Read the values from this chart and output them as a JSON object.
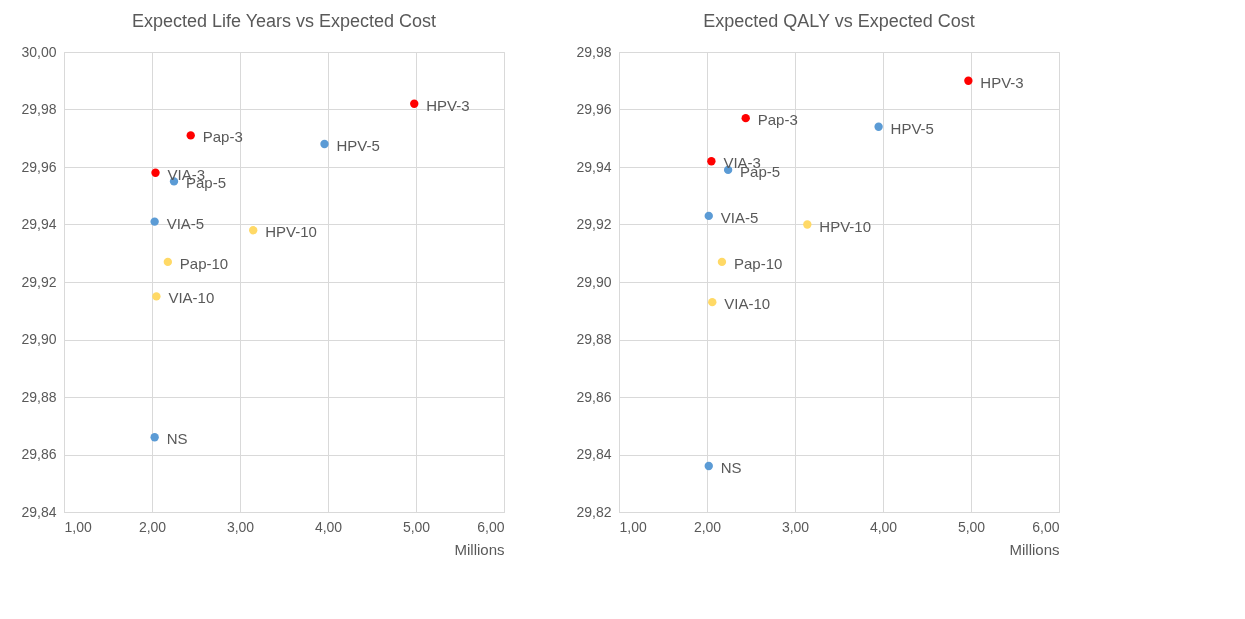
{
  "chart_data": [
    {
      "type": "scatter",
      "title": "Expected Life Years vs Expected Cost",
      "xlabel": "Millions",
      "xlim": [
        1,
        6
      ],
      "xticks": [
        {
          "value": 1,
          "label": "1,00"
        },
        {
          "value": 2,
          "label": "2,00"
        },
        {
          "value": 3,
          "label": "3,00"
        },
        {
          "value": 4,
          "label": "4,00"
        },
        {
          "value": 5,
          "label": "5,00"
        },
        {
          "value": 6,
          "label": "6,00"
        }
      ],
      "ylim": [
        29.84,
        30.0
      ],
      "yticks": [
        {
          "value": 29.84,
          "label": "29,84"
        },
        {
          "value": 29.86,
          "label": "29,86"
        },
        {
          "value": 29.88,
          "label": "29,88"
        },
        {
          "value": 29.9,
          "label": "29,90"
        },
        {
          "value": 29.92,
          "label": "29,92"
        },
        {
          "value": 29.94,
          "label": "29,94"
        },
        {
          "value": 29.96,
          "label": "29,96"
        },
        {
          "value": 29.98,
          "label": "29,98"
        },
        {
          "value": 30.0,
          "label": "30,00"
        }
      ],
      "grid": true,
      "legend": false,
      "marker": "circle",
      "series": [
        {
          "color": "#ff0000",
          "x": [
            4.98,
            2.44,
            2.04
          ],
          "values": [
            29.982,
            29.971,
            29.958
          ]
        },
        {
          "color": "#5b9bd5",
          "x": [
            3.96,
            2.25,
            2.03,
            2.03
          ],
          "values": [
            29.968,
            29.955,
            29.941,
            29.866
          ]
        },
        {
          "color": "#ffd966",
          "x": [
            3.15,
            2.18,
            2.05
          ],
          "values": [
            29.938,
            29.927,
            29.915
          ]
        }
      ],
      "annotations": [
        {
          "text": "HPV-3",
          "x": 4.98,
          "y": 29.982
        },
        {
          "text": "Pap-3",
          "x": 2.44,
          "y": 29.971
        },
        {
          "text": "VIA-3",
          "x": 2.04,
          "y": 29.958
        },
        {
          "text": "HPV-5",
          "x": 3.96,
          "y": 29.968
        },
        {
          "text": "Pap-5",
          "x": 2.25,
          "y": 29.955
        },
        {
          "text": "VIA-5",
          "x": 2.03,
          "y": 29.941
        },
        {
          "text": "NS",
          "x": 2.03,
          "y": 29.866
        },
        {
          "text": "HPV-10",
          "x": 3.15,
          "y": 29.938
        },
        {
          "text": "Pap-10",
          "x": 2.18,
          "y": 29.927
        },
        {
          "text": "VIA-10",
          "x": 2.05,
          "y": 29.915
        }
      ]
    },
    {
      "type": "scatter",
      "title": "Expected QALY vs Expected Cost",
      "xlabel": "Millions",
      "xlim": [
        1,
        6
      ],
      "xticks": [
        {
          "value": 1,
          "label": "1,00"
        },
        {
          "value": 2,
          "label": "2,00"
        },
        {
          "value": 3,
          "label": "3,00"
        },
        {
          "value": 4,
          "label": "4,00"
        },
        {
          "value": 5,
          "label": "5,00"
        },
        {
          "value": 6,
          "label": "6,00"
        }
      ],
      "ylim": [
        29.82,
        29.98
      ],
      "yticks": [
        {
          "value": 29.82,
          "label": "29,82"
        },
        {
          "value": 29.84,
          "label": "29,84"
        },
        {
          "value": 29.86,
          "label": "29,86"
        },
        {
          "value": 29.88,
          "label": "29,88"
        },
        {
          "value": 29.9,
          "label": "29,90"
        },
        {
          "value": 29.92,
          "label": "29,92"
        },
        {
          "value": 29.94,
          "label": "29,94"
        },
        {
          "value": 29.96,
          "label": "29,96"
        },
        {
          "value": 29.98,
          "label": "29,98"
        }
      ],
      "grid": true,
      "legend": false,
      "marker": "circle",
      "series": [
        {
          "color": "#ff0000",
          "x": [
            4.97,
            2.44,
            2.05
          ],
          "values": [
            29.97,
            29.957,
            29.942
          ]
        },
        {
          "color": "#5b9bd5",
          "x": [
            3.95,
            2.24,
            2.02,
            2.02
          ],
          "values": [
            29.954,
            29.939,
            29.923,
            29.836
          ]
        },
        {
          "color": "#ffd966",
          "x": [
            3.14,
            2.17,
            2.06
          ],
          "values": [
            29.92,
            29.907,
            29.893
          ]
        }
      ],
      "annotations": [
        {
          "text": "HPV-3",
          "x": 4.97,
          "y": 29.97
        },
        {
          "text": "Pap-3",
          "x": 2.44,
          "y": 29.957
        },
        {
          "text": "VIA-3",
          "x": 2.05,
          "y": 29.942
        },
        {
          "text": "HPV-5",
          "x": 3.95,
          "y": 29.954
        },
        {
          "text": "Pap-5",
          "x": 2.24,
          "y": 29.939
        },
        {
          "text": "VIA-5",
          "x": 2.02,
          "y": 29.923
        },
        {
          "text": "NS",
          "x": 2.02,
          "y": 29.836
        },
        {
          "text": "HPV-10",
          "x": 3.14,
          "y": 29.92
        },
        {
          "text": "Pap-10",
          "x": 2.17,
          "y": 29.907
        },
        {
          "text": "VIA-10",
          "x": 2.06,
          "y": 29.893
        }
      ]
    }
  ]
}
